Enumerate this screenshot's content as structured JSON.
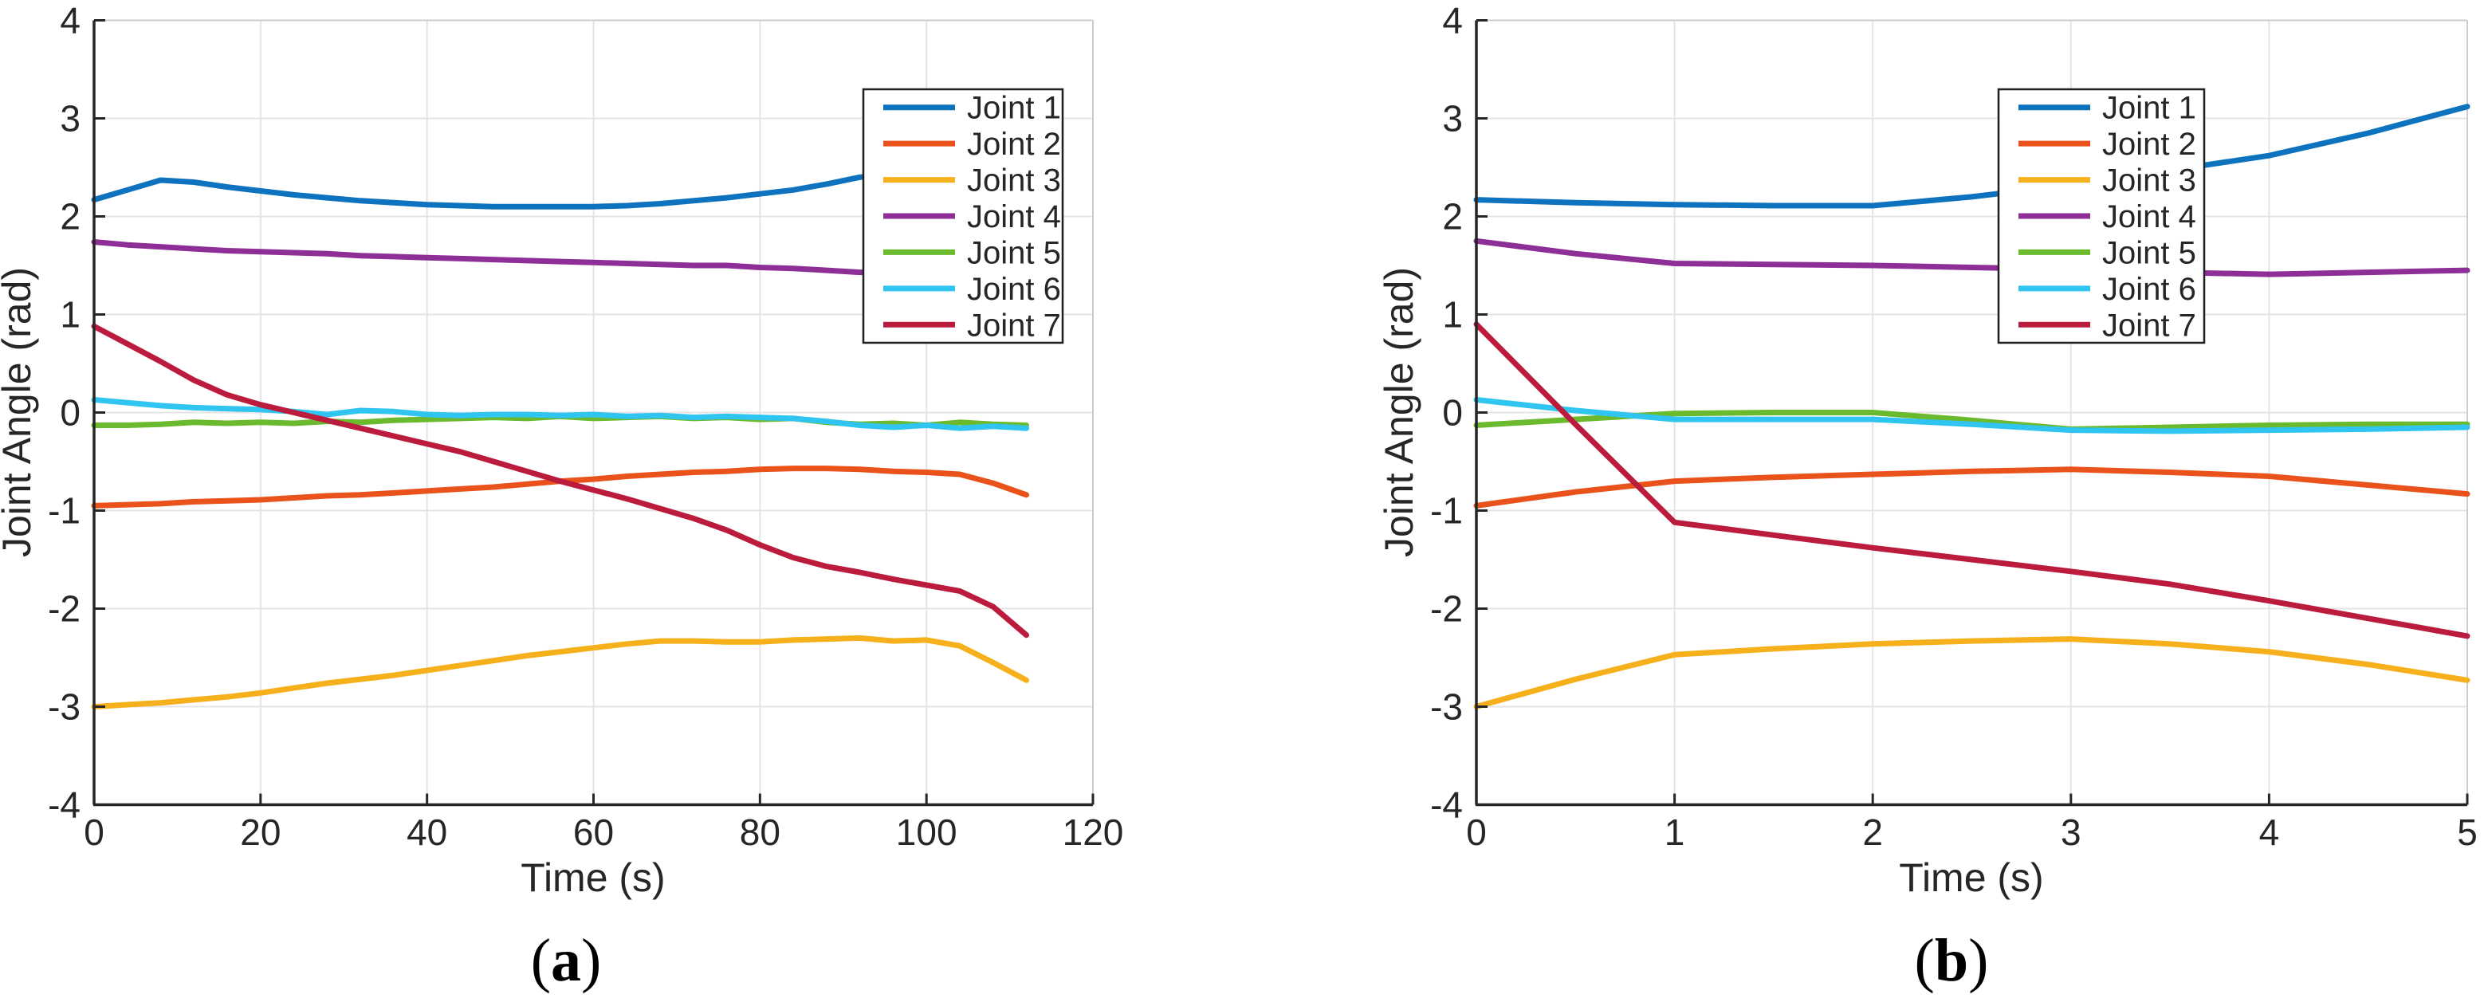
{
  "figure": {
    "background": "#ffffff",
    "axis_color": "#262626",
    "grid_color": "#e4e4e4",
    "frame_color": "#cccccc",
    "legend_border_color": "#1f1f1f",
    "legend_background": "#ffffff"
  },
  "chart_data": [
    {
      "type": "line",
      "panel": "a",
      "caption": "(a)",
      "xlabel": "Time (s)",
      "ylabel": "Joint Angle (rad)",
      "xlim": [
        0,
        120
      ],
      "ylim": [
        -4,
        4
      ],
      "xticks": [
        0,
        20,
        40,
        60,
        80,
        100,
        120
      ],
      "yticks": [
        4,
        3,
        2,
        1,
        0,
        -1,
        -2,
        -3,
        -4
      ],
      "grid": true,
      "legend_position": "northeast-inside",
      "legend_entries": [
        "Joint 1",
        "Joint 2",
        "Joint 3",
        "Joint 4",
        "Joint 5",
        "Joint 6",
        "Joint 7"
      ],
      "x": [
        0,
        4,
        8,
        12,
        16,
        20,
        24,
        28,
        32,
        36,
        40,
        44,
        48,
        52,
        56,
        60,
        64,
        68,
        72,
        76,
        80,
        84,
        88,
        92,
        96,
        100,
        104,
        108,
        112
      ],
      "series": [
        {
          "name": "Joint 1",
          "color": "#0e73be",
          "values": [
            2.17,
            2.27,
            2.37,
            2.35,
            2.3,
            2.26,
            2.22,
            2.19,
            2.16,
            2.14,
            2.12,
            2.11,
            2.1,
            2.1,
            2.1,
            2.1,
            2.11,
            2.13,
            2.16,
            2.19,
            2.23,
            2.27,
            2.33,
            2.4,
            2.44,
            2.45,
            2.46,
            2.46,
            2.47
          ]
        },
        {
          "name": "Joint 2",
          "color": "#e9521a",
          "values": [
            -0.95,
            -0.94,
            -0.93,
            -0.91,
            -0.9,
            -0.89,
            -0.87,
            -0.85,
            -0.84,
            -0.82,
            -0.8,
            -0.78,
            -0.76,
            -0.73,
            -0.7,
            -0.68,
            -0.65,
            -0.63,
            -0.61,
            -0.6,
            -0.58,
            -0.57,
            -0.57,
            -0.58,
            -0.6,
            -0.61,
            -0.63,
            -0.72,
            -0.84
          ]
        },
        {
          "name": "Joint 3",
          "color": "#f5b01b",
          "values": [
            -3.0,
            -2.98,
            -2.96,
            -2.93,
            -2.9,
            -2.86,
            -2.81,
            -2.76,
            -2.72,
            -2.68,
            -2.63,
            -2.58,
            -2.53,
            -2.48,
            -2.44,
            -2.4,
            -2.36,
            -2.33,
            -2.33,
            -2.34,
            -2.34,
            -2.32,
            -2.31,
            -2.3,
            -2.33,
            -2.32,
            -2.38,
            -2.55,
            -2.73
          ]
        },
        {
          "name": "Joint 4",
          "color": "#8d2f97",
          "values": [
            1.74,
            1.71,
            1.69,
            1.67,
            1.65,
            1.64,
            1.63,
            1.62,
            1.6,
            1.59,
            1.58,
            1.57,
            1.56,
            1.55,
            1.54,
            1.53,
            1.52,
            1.51,
            1.5,
            1.5,
            1.48,
            1.47,
            1.45,
            1.43,
            1.43,
            1.43,
            1.42,
            1.42,
            1.42
          ]
        },
        {
          "name": "Joint 5",
          "color": "#6bba2d",
          "values": [
            -0.13,
            -0.13,
            -0.12,
            -0.1,
            -0.11,
            -0.1,
            -0.11,
            -0.09,
            -0.1,
            -0.08,
            -0.07,
            -0.06,
            -0.05,
            -0.06,
            -0.04,
            -0.06,
            -0.05,
            -0.04,
            -0.06,
            -0.05,
            -0.07,
            -0.06,
            -0.1,
            -0.12,
            -0.11,
            -0.13,
            -0.1,
            -0.12,
            -0.13
          ]
        },
        {
          "name": "Joint 6",
          "color": "#30c4f0",
          "values": [
            0.13,
            0.1,
            0.07,
            0.05,
            0.04,
            0.03,
            0.01,
            -0.02,
            0.02,
            0.01,
            -0.02,
            -0.03,
            -0.02,
            -0.02,
            -0.03,
            -0.02,
            -0.04,
            -0.03,
            -0.05,
            -0.04,
            -0.05,
            -0.06,
            -0.09,
            -0.13,
            -0.15,
            -0.13,
            -0.16,
            -0.14,
            -0.16
          ]
        },
        {
          "name": "Joint 7",
          "color": "#bb1b3c",
          "values": [
            0.88,
            0.7,
            0.52,
            0.33,
            0.18,
            0.08,
            0.0,
            -0.08,
            -0.16,
            -0.24,
            -0.32,
            -0.4,
            -0.5,
            -0.6,
            -0.7,
            -0.79,
            -0.88,
            -0.98,
            -1.08,
            -1.2,
            -1.35,
            -1.48,
            -1.57,
            -1.63,
            -1.7,
            -1.76,
            -1.82,
            -1.98,
            -2.27
          ]
        }
      ]
    },
    {
      "type": "line",
      "panel": "b",
      "caption": "(b)",
      "xlabel": "Time (s)",
      "ylabel": "Joint Angle (rad)",
      "xlim": [
        0,
        5
      ],
      "ylim": [
        -4,
        4
      ],
      "xticks": [
        0,
        1,
        2,
        3,
        4,
        5
      ],
      "yticks": [
        4,
        3,
        2,
        1,
        0,
        -1,
        -2,
        -3,
        -4
      ],
      "grid": true,
      "legend_position": "northeast-inside",
      "legend_entries": [
        "Joint 1",
        "Joint 2",
        "Joint 3",
        "Joint 4",
        "Joint 5",
        "Joint 6",
        "Joint 7"
      ],
      "x": [
        0,
        0.5,
        1,
        1.5,
        2,
        2.5,
        3,
        3.5,
        4,
        4.5,
        5
      ],
      "series": [
        {
          "name": "Joint 1",
          "color": "#0e73be",
          "values": [
            2.17,
            2.14,
            2.12,
            2.11,
            2.11,
            2.2,
            2.32,
            2.47,
            2.62,
            2.85,
            3.12
          ]
        },
        {
          "name": "Joint 2",
          "color": "#e9521a",
          "values": [
            -0.95,
            -0.81,
            -0.7,
            -0.66,
            -0.63,
            -0.6,
            -0.58,
            -0.61,
            -0.65,
            -0.74,
            -0.83
          ]
        },
        {
          "name": "Joint 3",
          "color": "#f5b01b",
          "values": [
            -3.0,
            -2.72,
            -2.47,
            -2.41,
            -2.36,
            -2.33,
            -2.31,
            -2.36,
            -2.44,
            -2.57,
            -2.73
          ]
        },
        {
          "name": "Joint 4",
          "color": "#8d2f97",
          "values": [
            1.75,
            1.62,
            1.52,
            1.51,
            1.5,
            1.48,
            1.46,
            1.43,
            1.41,
            1.43,
            1.45
          ]
        },
        {
          "name": "Joint 5",
          "color": "#6bba2d",
          "values": [
            -0.13,
            -0.07,
            -0.01,
            0.0,
            0.0,
            -0.08,
            -0.17,
            -0.15,
            -0.13,
            -0.12,
            -0.12
          ]
        },
        {
          "name": "Joint 6",
          "color": "#30c4f0",
          "values": [
            0.13,
            0.02,
            -0.07,
            -0.07,
            -0.07,
            -0.12,
            -0.18,
            -0.19,
            -0.18,
            -0.17,
            -0.15
          ]
        },
        {
          "name": "Joint 7",
          "color": "#bb1b3c",
          "values": [
            0.9,
            -0.12,
            -1.12,
            -1.25,
            -1.38,
            -1.5,
            -1.62,
            -1.75,
            -1.92,
            -2.1,
            -2.28
          ]
        }
      ]
    }
  ]
}
